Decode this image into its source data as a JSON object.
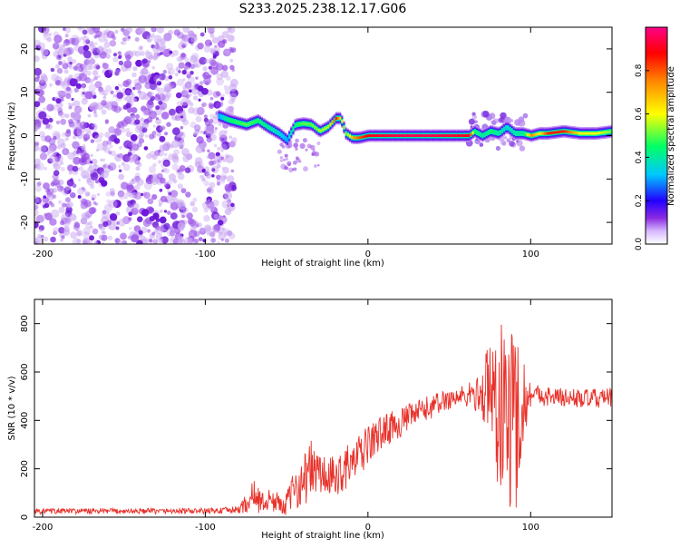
{
  "title": "S233.2025.238.12.17.G06",
  "chart_data": [
    {
      "type": "heatmap",
      "xlabel": "Height of straight line (km)",
      "ylabel": "Frequency (Hz)",
      "xlim": [
        -205,
        150
      ],
      "ylim": [
        -25,
        25
      ],
      "xticks": [
        -200,
        -100,
        0,
        100
      ],
      "xtick_labels": [
        "-200",
        "-100",
        "0",
        "100"
      ],
      "yticks": [
        -20,
        -10,
        0,
        10,
        20
      ],
      "ytick_labels": [
        "-20",
        "-10",
        "0",
        "10",
        "20"
      ],
      "colorbar": {
        "label": "Normalized spectral amplitude",
        "range": [
          0.0,
          1.0
        ],
        "ticks": [
          0.0,
          0.2,
          0.4,
          0.6,
          0.8
        ],
        "tick_labels": [
          "0.0",
          "0.2",
          "0.4",
          "0.6",
          "0.8"
        ],
        "colors": [
          "#ffffff",
          "#8a2be2",
          "#2200ff",
          "#00c8ff",
          "#00ff66",
          "#ffff00",
          "#ff8800",
          "#ff0000",
          "#ff0088"
        ]
      },
      "noise_region_x": [
        -205,
        -88
      ],
      "ridge": {
        "x": [
          -92,
          -85,
          -75,
          -68,
          -62,
          -55,
          -50,
          -45,
          -40,
          -35,
          -30,
          -25,
          -20,
          -17,
          -14,
          -10,
          -6,
          0,
          20,
          40,
          62,
          65,
          70,
          75,
          80,
          85,
          90,
          95,
          100,
          105,
          110,
          120,
          130,
          140,
          150
        ],
        "freq": [
          4.5,
          3.5,
          2.5,
          3.5,
          2.0,
          0.5,
          -1.0,
          2.5,
          2.8,
          2.5,
          1.0,
          2.0,
          4.0,
          4.0,
          0.5,
          -0.5,
          -0.5,
          0.0,
          0.0,
          0.0,
          0.0,
          1.0,
          0.0,
          1.0,
          0.5,
          2.0,
          0.5,
          0.5,
          0.0,
          0.5,
          0.5,
          1.0,
          0.5,
          0.5,
          1.0
        ],
        "amplitude": [
          0.3,
          0.45,
          0.5,
          0.45,
          0.4,
          0.35,
          0.3,
          0.45,
          0.5,
          0.5,
          0.55,
          0.55,
          0.85,
          0.6,
          0.5,
          0.7,
          0.8,
          0.9,
          0.95,
          0.95,
          0.9,
          0.45,
          0.4,
          0.45,
          0.4,
          0.35,
          0.4,
          0.4,
          0.75,
          0.6,
          0.85,
          0.85,
          0.6,
          0.6,
          0.5
        ]
      }
    },
    {
      "type": "line",
      "xlabel": "Height of straight line (km)",
      "ylabel": "SNR (10 * v/v)",
      "xlim": [
        -205,
        150
      ],
      "ylim": [
        0,
        900
      ],
      "xticks": [
        -200,
        -100,
        0,
        100
      ],
      "xtick_labels": [
        "-200",
        "-100",
        "0",
        "100"
      ],
      "yticks": [
        0,
        200,
        400,
        600,
        800
      ],
      "ytick_labels": [
        "0",
        "200",
        "400",
        "600",
        "800"
      ],
      "color": "#e8312a",
      "envelope": {
        "x": [
          -205,
          -100,
          -80,
          -75,
          -70,
          -65,
          -60,
          -55,
          -50,
          -45,
          -40,
          -35,
          -30,
          -25,
          -20,
          -15,
          -10,
          -5,
          0,
          10,
          20,
          30,
          40,
          50,
          60,
          70,
          75,
          80,
          85,
          90,
          95,
          100,
          110,
          120,
          130,
          140,
          150
        ],
        "mean": [
          25,
          25,
          30,
          55,
          90,
          60,
          70,
          60,
          55,
          120,
          150,
          200,
          180,
          160,
          160,
          200,
          220,
          250,
          300,
          360,
          390,
          430,
          460,
          490,
          500,
          510,
          520,
          450,
          420,
          400,
          470,
          510,
          500,
          495,
          490,
          490,
          495
        ],
        "noise": [
          12,
          12,
          15,
          40,
          70,
          45,
          50,
          40,
          50,
          80,
          110,
          120,
          100,
          90,
          90,
          90,
          90,
          90,
          80,
          70,
          60,
          55,
          50,
          45,
          50,
          80,
          300,
          350,
          400,
          450,
          200,
          50,
          40,
          40,
          40,
          40,
          40
        ]
      }
    }
  ]
}
